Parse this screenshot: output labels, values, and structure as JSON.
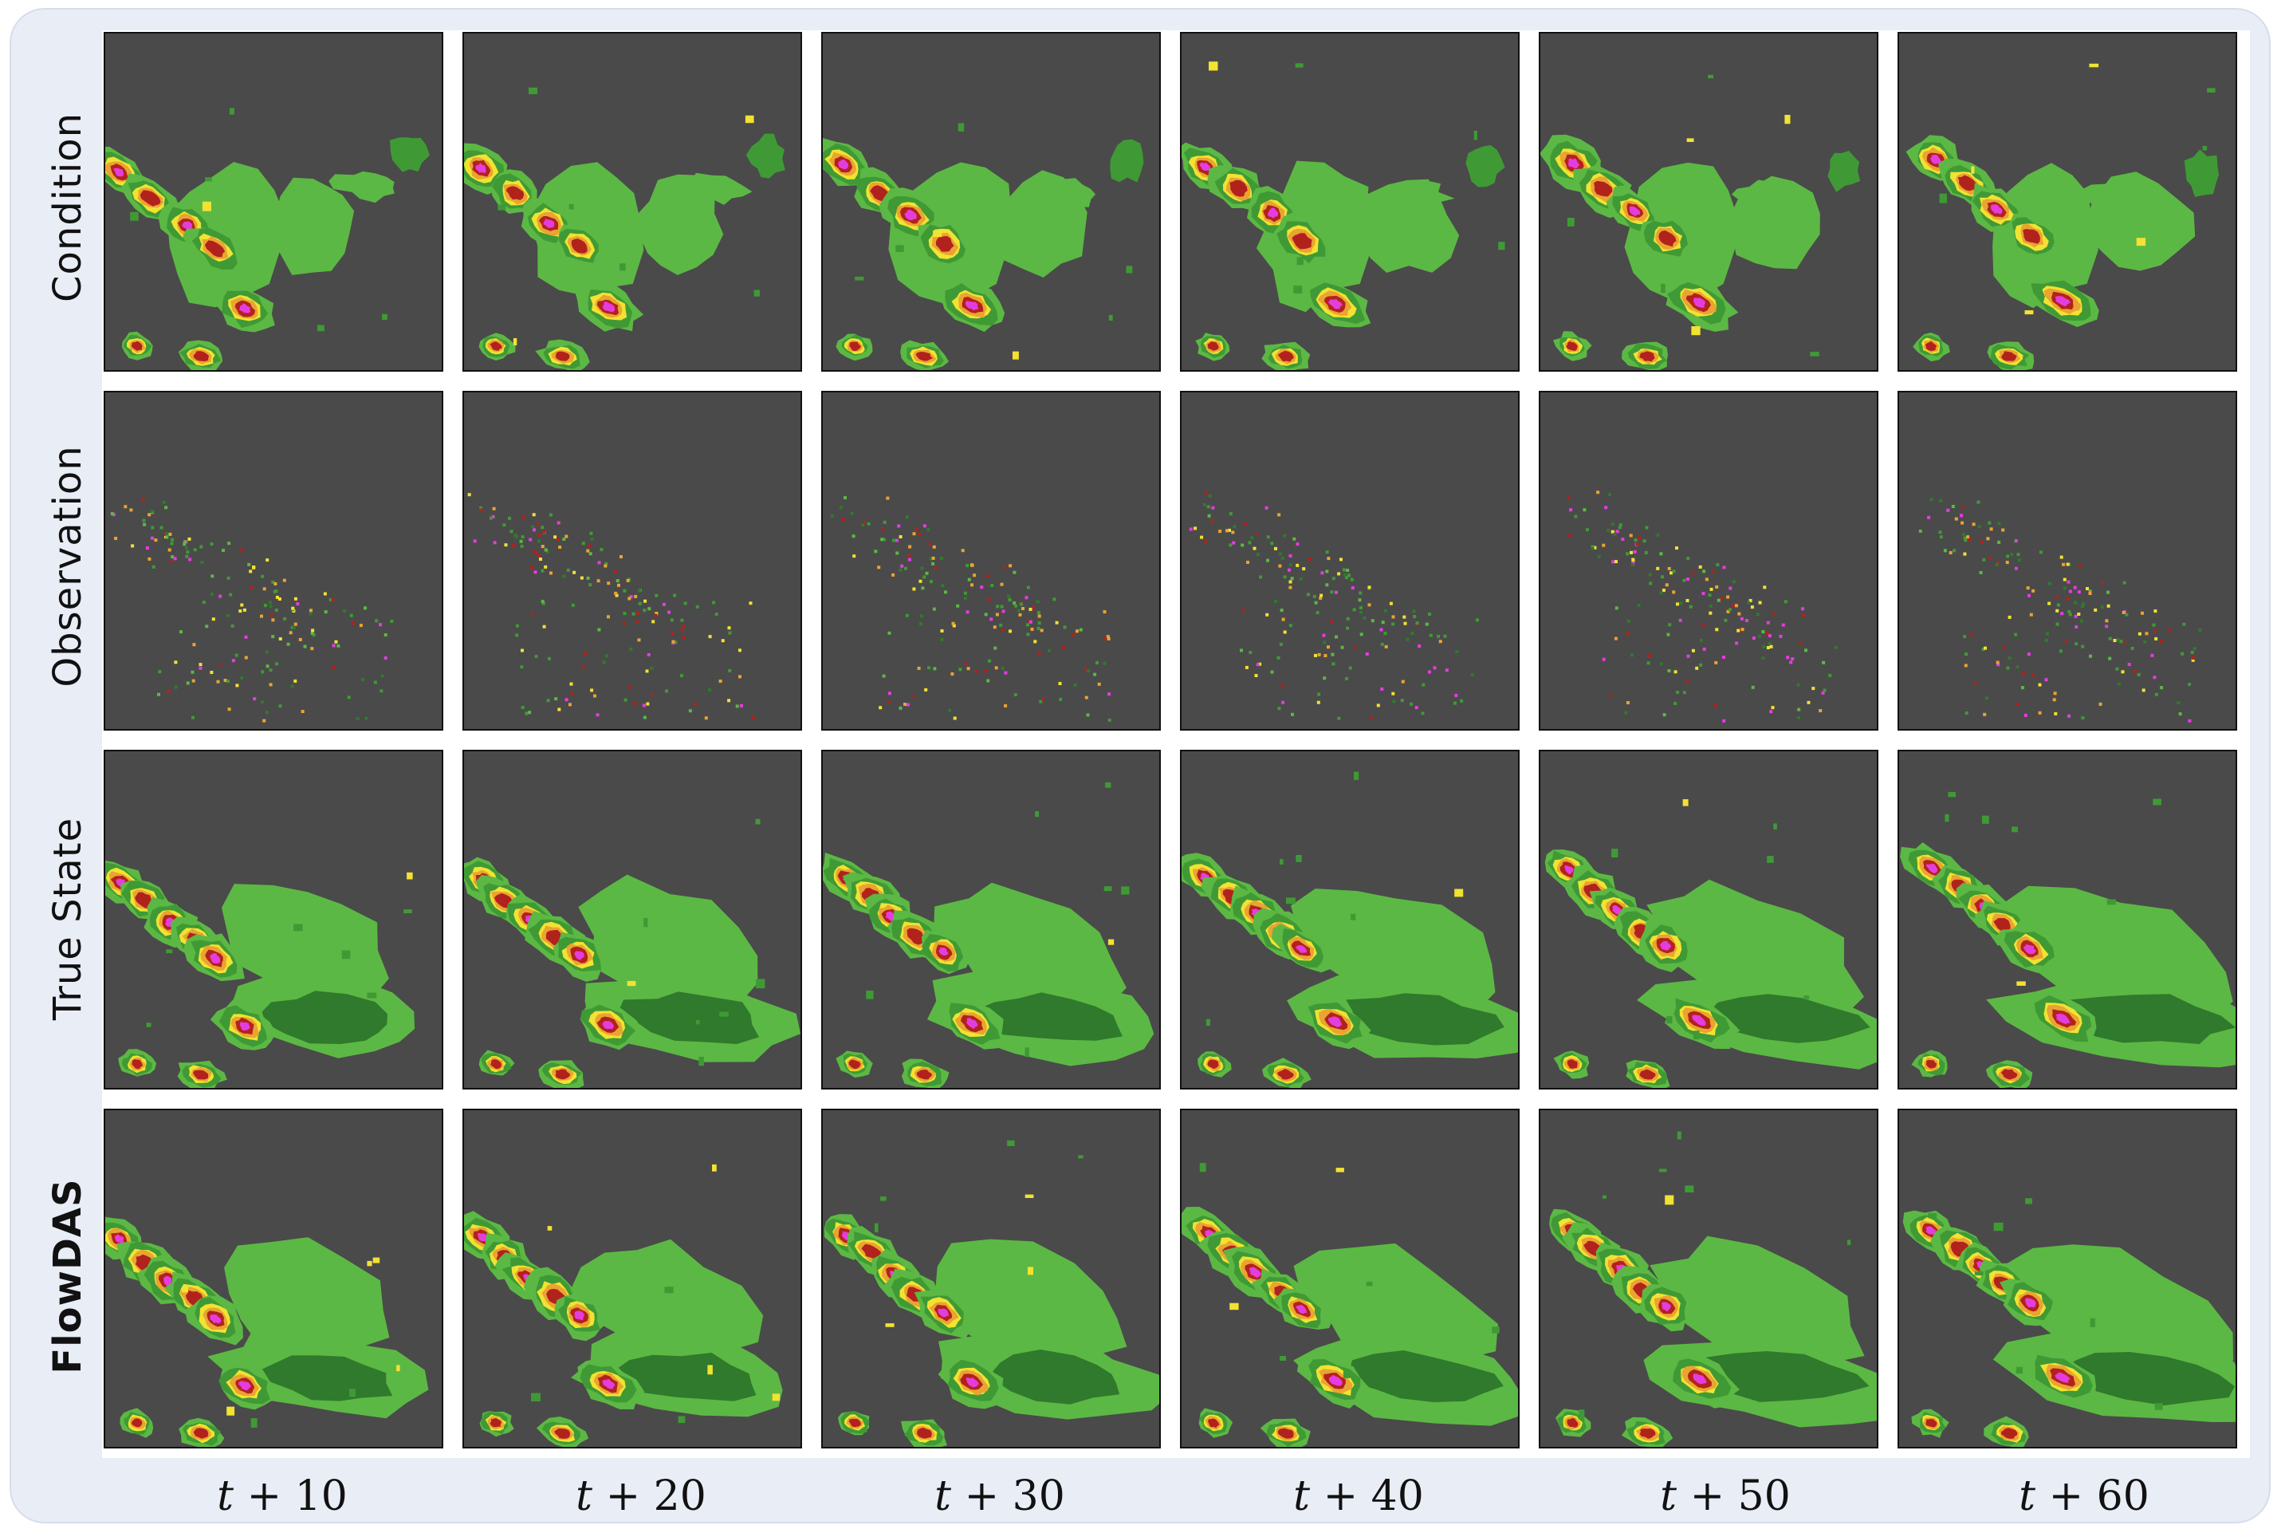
{
  "rows": [
    {
      "label": "Condition",
      "bold": false
    },
    {
      "label": "Observation",
      "bold": false
    },
    {
      "label": "True State",
      "bold": false
    },
    {
      "label": "FlowDAS",
      "bold": true
    }
  ],
  "columns": [
    {
      "var": "t",
      "rest": " + 10"
    },
    {
      "var": "t",
      "rest": " + 20"
    },
    {
      "var": "t",
      "rest": " + 30"
    },
    {
      "var": "t",
      "rest": " + 40"
    },
    {
      "var": "t",
      "rest": " + 50"
    },
    {
      "var": "t",
      "rest": " + 60"
    }
  ],
  "colors": {
    "background": "#4a4a4a",
    "light_green": "#5cb844",
    "green": "#3f9a35",
    "dark_green": "#2f7a2c",
    "yellow": "#f2e232",
    "orange": "#e9a431",
    "red": "#b2221c",
    "magenta": "#e43ddf"
  }
}
